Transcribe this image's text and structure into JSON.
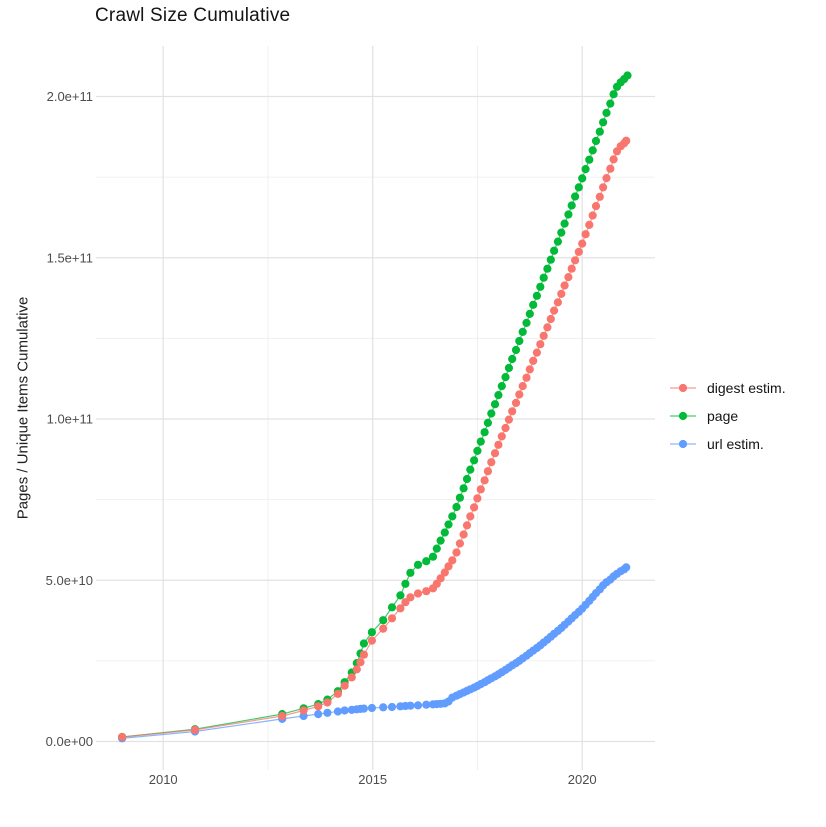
{
  "title": "Crawl Size Cumulative",
  "axes": {
    "y_label": "Pages / Unique Items Cumulative",
    "x_tick_labels": [
      "2010",
      "2015",
      "2020"
    ],
    "y_tick_labels": [
      "0.0e+00",
      "5.0e+10",
      "1.0e+11",
      "1.5e+11",
      "2.0e+11"
    ]
  },
  "legend": {
    "items": [
      {
        "id": "digest-estim",
        "label": "digest estim.",
        "color": "#F8766D"
      },
      {
        "id": "page",
        "label": "page",
        "color": "#00BA38"
      },
      {
        "id": "url-estim",
        "label": "url estim.",
        "color": "#619CFF"
      }
    ]
  },
  "colors": {
    "digest_estim": "#F8766D",
    "page": "#00BA38",
    "url_estim": "#619CFF",
    "grid_major": "#E2E2E2",
    "grid_minor": "#F0F0F0",
    "tick_text": "#4d4d4d"
  },
  "chart_data": {
    "type": "scatter",
    "title": "Crawl Size Cumulative",
    "xlabel": "",
    "ylabel": "Pages / Unique Items Cumulative",
    "unit": "values in billions (1e9); y axis shown in scientific notation",
    "x_domain": [
      2008.4,
      2021.7
    ],
    "y_domain_billions": [
      -10,
      215
    ],
    "grid": "on",
    "legend_position": "right",
    "x_ticks": [
      {
        "label": "2010",
        "value": 2010
      },
      {
        "label": "2015",
        "value": 2015
      },
      {
        "label": "2020",
        "value": 2020
      }
    ],
    "x_minor_ticks": [
      2012.5,
      2017.5
    ],
    "y_ticks": [
      {
        "label": "0.0e+00",
        "value": 0
      },
      {
        "label": "5.0e+10",
        "value": 50
      },
      {
        "label": "1.0e+11",
        "value": 100
      },
      {
        "label": "1.5e+11",
        "value": 150
      },
      {
        "label": "2.0e+11",
        "value": 200
      }
    ],
    "y_minor_ticks": [
      25,
      75,
      125,
      175
    ],
    "z_order": [
      "url estim.",
      "page",
      "digest estim."
    ],
    "series": [
      {
        "name": "digest estim.",
        "color": "#F8766D",
        "points": [
          [
            2009.02,
            1.4
          ],
          [
            2010.76,
            3.6
          ],
          [
            2012.84,
            7.9
          ],
          [
            2013.35,
            9.6
          ],
          [
            2013.7,
            10.9
          ],
          [
            2013.92,
            12.1
          ],
          [
            2014.17,
            14.8
          ],
          [
            2014.33,
            17.3
          ],
          [
            2014.5,
            19.9
          ],
          [
            2014.62,
            22.4
          ],
          [
            2014.71,
            24.6
          ],
          [
            2014.79,
            26.9
          ],
          [
            2014.98,
            31.3
          ],
          [
            2015.25,
            35.0
          ],
          [
            2015.46,
            38.2
          ],
          [
            2015.66,
            41.3
          ],
          [
            2015.78,
            43.2
          ],
          [
            2015.9,
            44.7
          ],
          [
            2016.08,
            45.9
          ],
          [
            2016.28,
            46.6
          ],
          [
            2016.44,
            47.5
          ],
          [
            2016.53,
            48.9
          ],
          [
            2016.62,
            50.6
          ],
          [
            2016.72,
            52.4
          ],
          [
            2016.81,
            54.3
          ],
          [
            2016.9,
            56.2
          ],
          [
            2017.0,
            58.6
          ],
          [
            2017.08,
            61.4
          ],
          [
            2017.17,
            64.2
          ],
          [
            2017.25,
            67.0
          ],
          [
            2017.33,
            69.8
          ],
          [
            2017.42,
            72.6
          ],
          [
            2017.5,
            75.4
          ],
          [
            2017.58,
            78.2
          ],
          [
            2017.67,
            81.0
          ],
          [
            2017.75,
            83.8
          ],
          [
            2017.83,
            86.6
          ],
          [
            2017.92,
            89.4
          ],
          [
            2018.0,
            92.0
          ],
          [
            2018.08,
            94.6
          ],
          [
            2018.17,
            97.2
          ],
          [
            2018.25,
            99.8
          ],
          [
            2018.33,
            102.4
          ],
          [
            2018.42,
            105.0
          ],
          [
            2018.5,
            107.6
          ],
          [
            2018.58,
            110.2
          ],
          [
            2018.67,
            112.8
          ],
          [
            2018.75,
            115.4
          ],
          [
            2018.83,
            118.0
          ],
          [
            2018.92,
            120.6
          ],
          [
            2019.0,
            123.2
          ],
          [
            2019.08,
            125.8
          ],
          [
            2019.17,
            128.4
          ],
          [
            2019.25,
            131.0
          ],
          [
            2019.33,
            133.6
          ],
          [
            2019.42,
            136.2
          ],
          [
            2019.5,
            138.8
          ],
          [
            2019.58,
            141.4
          ],
          [
            2019.67,
            144.0
          ],
          [
            2019.75,
            146.6
          ],
          [
            2019.83,
            149.2
          ],
          [
            2019.92,
            151.8
          ],
          [
            2020.0,
            154.4
          ],
          [
            2020.08,
            157.3
          ],
          [
            2020.17,
            160.2
          ],
          [
            2020.25,
            163.1
          ],
          [
            2020.33,
            166.0
          ],
          [
            2020.42,
            168.9
          ],
          [
            2020.5,
            171.8
          ],
          [
            2020.58,
            174.7
          ],
          [
            2020.67,
            177.6
          ],
          [
            2020.75,
            180.5
          ],
          [
            2020.83,
            183.0
          ],
          [
            2020.92,
            184.6
          ],
          [
            2021.0,
            185.5
          ],
          [
            2021.05,
            186.3
          ]
        ]
      },
      {
        "name": "page",
        "color": "#00BA38",
        "points": [
          [
            2009.02,
            1.4
          ],
          [
            2010.76,
            3.8
          ],
          [
            2012.84,
            8.5
          ],
          [
            2013.35,
            10.3
          ],
          [
            2013.7,
            11.6
          ],
          [
            2013.92,
            13.0
          ],
          [
            2014.17,
            15.6
          ],
          [
            2014.33,
            18.4
          ],
          [
            2014.5,
            21.4
          ],
          [
            2014.62,
            24.3
          ],
          [
            2014.71,
            27.3
          ],
          [
            2014.79,
            30.4
          ],
          [
            2014.98,
            33.9
          ],
          [
            2015.25,
            37.6
          ],
          [
            2015.46,
            41.6
          ],
          [
            2015.66,
            45.3
          ],
          [
            2015.78,
            48.9
          ],
          [
            2015.9,
            52.3
          ],
          [
            2016.08,
            54.8
          ],
          [
            2016.28,
            55.9
          ],
          [
            2016.44,
            57.3
          ],
          [
            2016.53,
            59.8
          ],
          [
            2016.62,
            62.3
          ],
          [
            2016.72,
            64.8
          ],
          [
            2016.81,
            67.3
          ],
          [
            2016.9,
            69.8
          ],
          [
            2017.0,
            72.7
          ],
          [
            2017.08,
            75.6
          ],
          [
            2017.17,
            78.5
          ],
          [
            2017.25,
            81.4
          ],
          [
            2017.33,
            84.3
          ],
          [
            2017.42,
            87.2
          ],
          [
            2017.5,
            90.1
          ],
          [
            2017.58,
            93.0
          ],
          [
            2017.67,
            95.9
          ],
          [
            2017.75,
            98.8
          ],
          [
            2017.83,
            101.7
          ],
          [
            2017.92,
            104.6
          ],
          [
            2018.0,
            107.4
          ],
          [
            2018.08,
            110.2
          ],
          [
            2018.17,
            113.0
          ],
          [
            2018.25,
            115.8
          ],
          [
            2018.33,
            118.6
          ],
          [
            2018.42,
            121.4
          ],
          [
            2018.5,
            124.2
          ],
          [
            2018.58,
            127.0
          ],
          [
            2018.67,
            129.8
          ],
          [
            2018.75,
            132.6
          ],
          [
            2018.83,
            135.4
          ],
          [
            2018.92,
            138.2
          ],
          [
            2019.0,
            141.0
          ],
          [
            2019.08,
            143.8
          ],
          [
            2019.17,
            146.6
          ],
          [
            2019.25,
            149.4
          ],
          [
            2019.33,
            152.2
          ],
          [
            2019.42,
            155.0
          ],
          [
            2019.5,
            157.8
          ],
          [
            2019.58,
            160.6
          ],
          [
            2019.67,
            163.4
          ],
          [
            2019.75,
            166.2
          ],
          [
            2019.83,
            169.0
          ],
          [
            2019.92,
            171.8
          ],
          [
            2020.0,
            174.6
          ],
          [
            2020.08,
            177.5
          ],
          [
            2020.17,
            180.4
          ],
          [
            2020.25,
            183.3
          ],
          [
            2020.33,
            186.2
          ],
          [
            2020.42,
            189.1
          ],
          [
            2020.5,
            192.0
          ],
          [
            2020.58,
            194.9
          ],
          [
            2020.67,
            197.8
          ],
          [
            2020.75,
            200.7
          ],
          [
            2020.83,
            203.0
          ],
          [
            2020.92,
            204.4
          ],
          [
            2021.0,
            205.4
          ],
          [
            2021.08,
            206.5
          ]
        ]
      },
      {
        "name": "url estim.",
        "color": "#619CFF",
        "points": [
          [
            2009.02,
            1.0
          ],
          [
            2010.76,
            3.1
          ],
          [
            2012.84,
            7.0
          ],
          [
            2013.35,
            7.9
          ],
          [
            2013.7,
            8.5
          ],
          [
            2013.92,
            8.9
          ],
          [
            2014.17,
            9.3
          ],
          [
            2014.33,
            9.6
          ],
          [
            2014.5,
            9.8
          ],
          [
            2014.62,
            10.0
          ],
          [
            2014.71,
            10.1
          ],
          [
            2014.79,
            10.2
          ],
          [
            2014.98,
            10.4
          ],
          [
            2015.25,
            10.6
          ],
          [
            2015.46,
            10.7
          ],
          [
            2015.66,
            10.9
          ],
          [
            2015.78,
            11.0
          ],
          [
            2015.9,
            11.1
          ],
          [
            2016.08,
            11.2
          ],
          [
            2016.28,
            11.4
          ],
          [
            2016.44,
            11.5
          ],
          [
            2016.53,
            11.6
          ],
          [
            2016.62,
            11.7
          ],
          [
            2016.72,
            11.8
          ],
          [
            2016.81,
            12.4
          ],
          [
            2016.9,
            13.6
          ],
          [
            2017.0,
            14.2
          ],
          [
            2017.08,
            14.7
          ],
          [
            2017.17,
            15.2
          ],
          [
            2017.25,
            15.7
          ],
          [
            2017.33,
            16.2
          ],
          [
            2017.42,
            16.7
          ],
          [
            2017.5,
            17.2
          ],
          [
            2017.58,
            17.8
          ],
          [
            2017.67,
            18.4
          ],
          [
            2017.75,
            19.0
          ],
          [
            2017.83,
            19.6
          ],
          [
            2017.92,
            20.2
          ],
          [
            2018.0,
            20.8
          ],
          [
            2018.08,
            21.5
          ],
          [
            2018.17,
            22.2
          ],
          [
            2018.25,
            22.9
          ],
          [
            2018.33,
            23.6
          ],
          [
            2018.42,
            24.3
          ],
          [
            2018.5,
            25.0
          ],
          [
            2018.58,
            25.8
          ],
          [
            2018.67,
            26.6
          ],
          [
            2018.75,
            27.4
          ],
          [
            2018.83,
            28.2
          ],
          [
            2018.92,
            29.0
          ],
          [
            2019.0,
            29.8
          ],
          [
            2019.08,
            30.7
          ],
          [
            2019.17,
            31.6
          ],
          [
            2019.25,
            32.5
          ],
          [
            2019.33,
            33.4
          ],
          [
            2019.42,
            34.3
          ],
          [
            2019.5,
            35.2
          ],
          [
            2019.58,
            36.2
          ],
          [
            2019.67,
            37.2
          ],
          [
            2019.75,
            38.2
          ],
          [
            2019.83,
            39.2
          ],
          [
            2019.92,
            40.2
          ],
          [
            2020.0,
            41.2
          ],
          [
            2020.08,
            42.4
          ],
          [
            2020.17,
            43.6
          ],
          [
            2020.25,
            44.8
          ],
          [
            2020.33,
            46.0
          ],
          [
            2020.42,
            47.2
          ],
          [
            2020.5,
            48.4
          ],
          [
            2020.58,
            49.4
          ],
          [
            2020.67,
            50.2
          ],
          [
            2020.75,
            51.2
          ],
          [
            2020.83,
            52.0
          ],
          [
            2020.92,
            52.8
          ],
          [
            2021.0,
            53.4
          ],
          [
            2021.05,
            54.0
          ]
        ]
      }
    ]
  }
}
